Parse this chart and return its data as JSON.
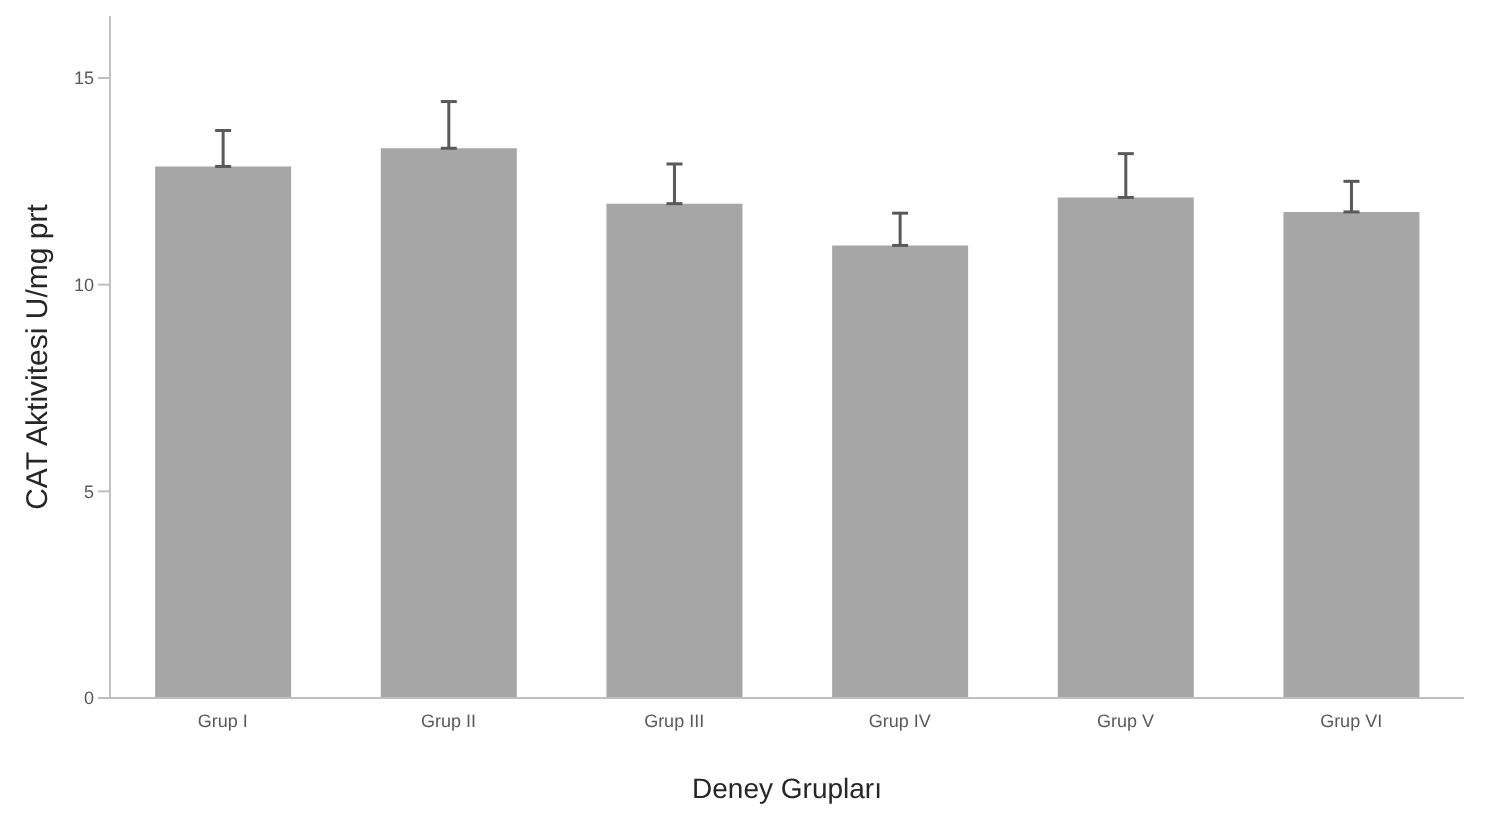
{
  "chart_data": {
    "type": "bar",
    "xlabel": "Deney Grupları",
    "ylabel": "CAT Aktivitesi U/mg prt",
    "categories": [
      "Grup I",
      "Grup II",
      "Grup III",
      "Grup IV",
      "Grup V",
      "Grup VI"
    ],
    "values": [
      12.86,
      13.3,
      11.96,
      10.95,
      12.11,
      11.76
    ],
    "errors": [
      [
        12.86,
        13.73
      ],
      [
        13.3,
        14.43
      ],
      [
        11.96,
        12.92
      ],
      [
        10.95,
        11.73
      ],
      [
        12.11,
        13.17
      ],
      [
        11.76,
        12.5
      ]
    ],
    "color": "#a6a6a6",
    "ylim": [
      0,
      16.5
    ],
    "yticks": [
      0,
      5,
      10,
      15
    ],
    "grid": false,
    "legend": false
  }
}
